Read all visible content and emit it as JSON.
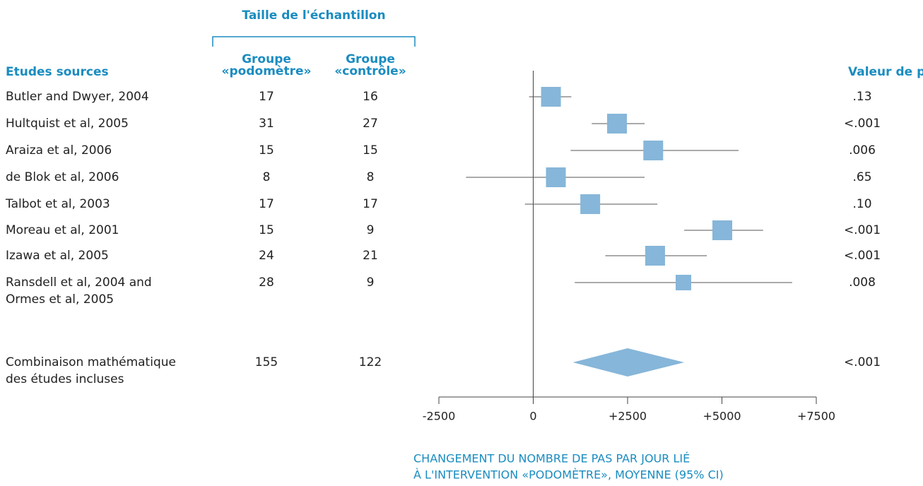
{
  "chart_data": {
    "type": "forest",
    "group_header": "Taille de l'échantillon",
    "study_header": "Etudes sources",
    "treatment_header": [
      "Groupe",
      "«podomètre»"
    ],
    "control_header": [
      "Groupe",
      "«contrôle»"
    ],
    "p_header": "Valeur de p",
    "categories": [
      "Butler and Dwyer, 2004",
      "Hultquist et al, 2005",
      "Araiza et al, 2006",
      "de Blok et al, 2006",
      "Talbot et al, 2003",
      "Moreau et al, 2001",
      "Izawa et al, 2005",
      [
        "Ransdell et al, 2004 and",
        "Ormes et al, 2005"
      ]
    ],
    "n_treatment": [
      17,
      31,
      15,
      8,
      17,
      15,
      24,
      28
    ],
    "n_control": [
      16,
      27,
      15,
      8,
      17,
      9,
      21,
      9
    ],
    "p_values": [
      ".13",
      "<.001",
      ".006",
      ".65",
      ".10",
      "<.001",
      "<.001",
      ".008"
    ],
    "values": [
      470,
      2220,
      3180,
      600,
      1510,
      5010,
      3230,
      3980
    ],
    "ci_low": [
      -110,
      1550,
      990,
      -1780,
      -220,
      4000,
      1910,
      1100
    ],
    "ci_high": [
      1010,
      2950,
      5440,
      2950,
      3290,
      6090,
      4600,
      6860
    ],
    "summary": {
      "label": [
        "Combinaison mathématique",
        "des études incluses"
      ],
      "n_treatment": 155,
      "n_control": 122,
      "p_value": "<.001",
      "value": 2500,
      "ci_low": 1050,
      "ci_high": 4000
    },
    "xlabel": [
      "CHANGEMENT DU NOMBRE DE PAS PAR JOUR LIÉ",
      "À L'INTERVENTION «PODOMÈTRE», MOYENNE (95% CI)"
    ],
    "xlim": [
      -2500,
      7500
    ],
    "xticks": [
      -2500,
      0,
      {
        "value": 2500,
        "label": "+2500"
      },
      {
        "value": 5000,
        "label": "+5000"
      },
      {
        "value": 7500,
        "label": "+7500"
      }
    ],
    "color": "#86b6d9"
  }
}
